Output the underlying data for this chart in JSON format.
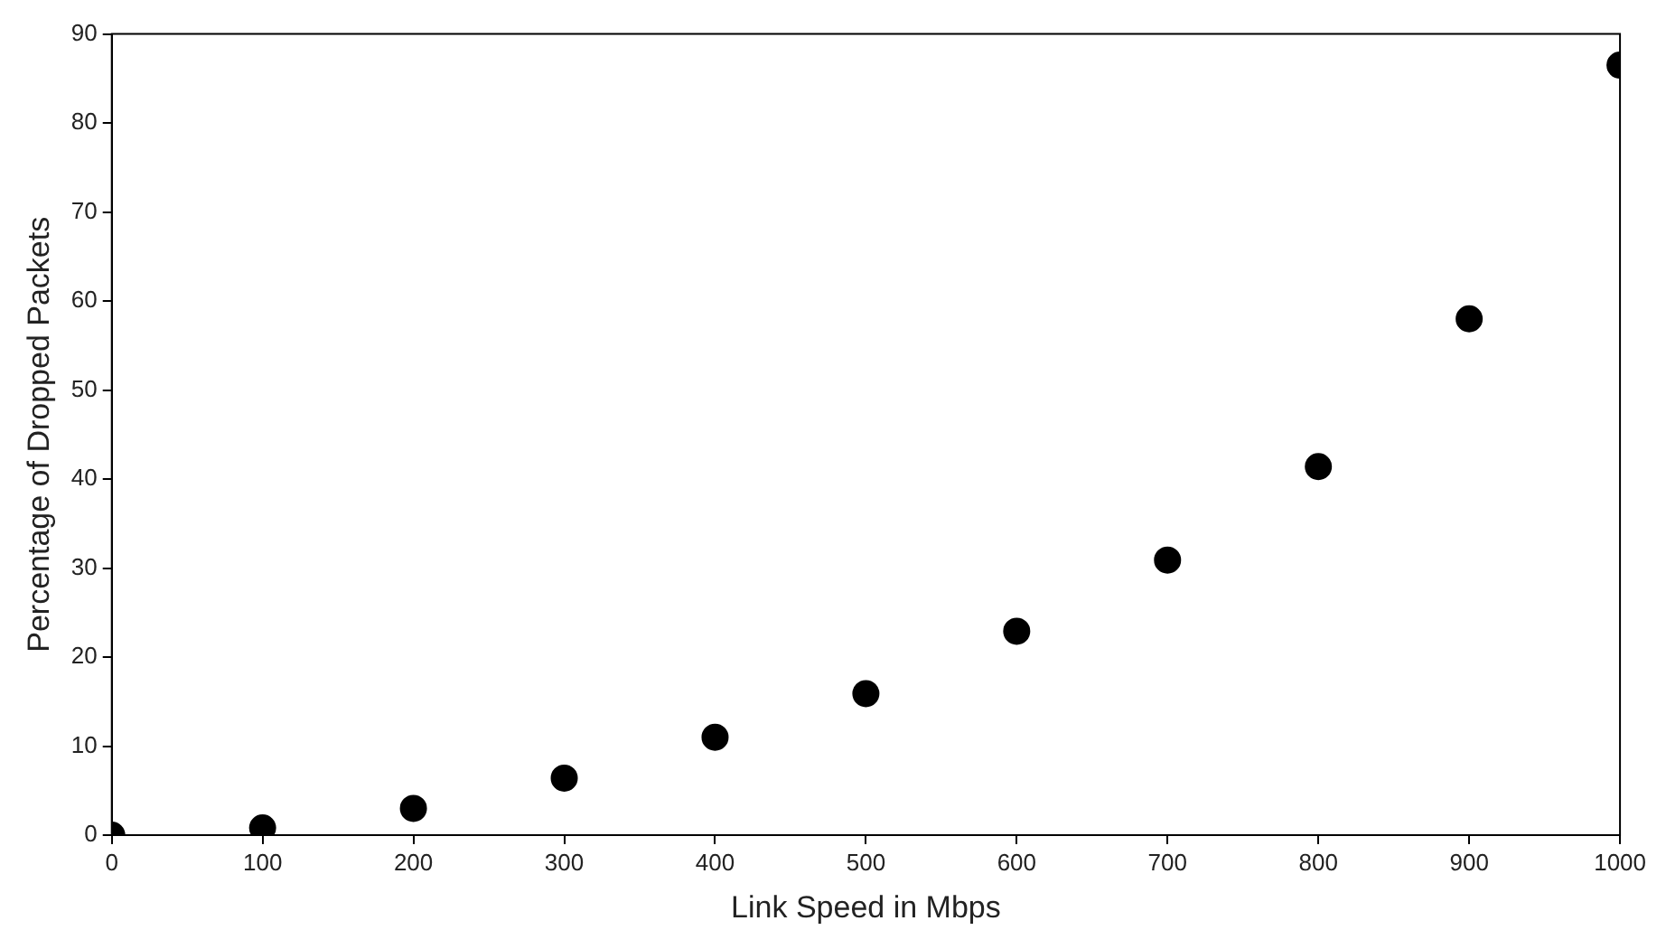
{
  "chart_data": {
    "type": "scatter",
    "xlabel": "Link Speed in Mbps",
    "ylabel": "Percentage of Dropped Packets",
    "x": [
      0,
      100,
      200,
      300,
      400,
      500,
      600,
      700,
      800,
      900,
      1000
    ],
    "series": [
      {
        "color": "#000000",
        "values": [
          0,
          0.8,
          3,
          6.4,
          11,
          15.9,
          22.9,
          30.9,
          41.4,
          58,
          86.5
        ]
      }
    ],
    "xlim": [
      0,
      1000
    ],
    "xticks": [
      0,
      100,
      200,
      300,
      400,
      500,
      600,
      700,
      800,
      900,
      1000
    ],
    "ylim": [
      0,
      90
    ],
    "yticks": [
      0,
      10,
      20,
      30,
      40,
      50,
      60,
      70,
      80,
      90
    ],
    "grid": false,
    "legend": false,
    "marker": "circle"
  }
}
